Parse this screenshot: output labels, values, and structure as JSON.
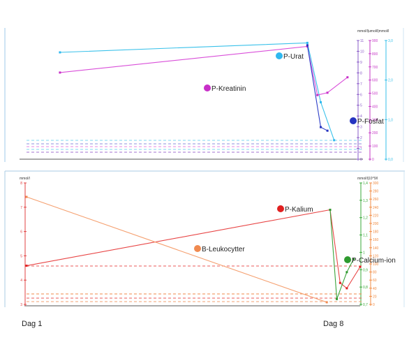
{
  "footer": {
    "day_start": "Dag 1",
    "day_end": "Dag 8"
  },
  "chart_data": [
    {
      "type": "line",
      "axis_header": "mmol/l|umol/l|mmol/l",
      "axes": [
        {
          "name": "left-mmol",
          "color": "#8a5cc8",
          "ticks": [
            "0",
            "1",
            "2",
            "3",
            "4",
            "5",
            "6",
            "7",
            "8",
            "9",
            "10",
            "11"
          ]
        },
        {
          "name": "mid-umol",
          "color": "#c63ac6",
          "ticks": [
            "0",
            "100",
            "200",
            "300",
            "400",
            "500",
            "600",
            "700",
            "800",
            "900"
          ]
        },
        {
          "name": "right-mmol",
          "color": "#36bfe8",
          "ticks": [
            "0,0",
            "1,0",
            "2,0",
            "3,0"
          ]
        }
      ],
      "series": [
        {
          "name": "P-Urat",
          "color": "#39c1ea",
          "marker_color": "#2fb8ef",
          "points": [
            [
              0.1,
              0.9
            ],
            [
              0.84,
              0.98
            ],
            [
              0.88,
              0.48
            ],
            [
              0.92,
              0.16
            ]
          ]
        },
        {
          "name": "P-Kreatinin",
          "color": "#d94ed9",
          "marker_color": "#c82fc8",
          "points": [
            [
              0.1,
              0.73
            ],
            [
              0.84,
              0.95
            ],
            [
              0.87,
              0.54
            ],
            [
              0.9,
              0.56
            ],
            [
              0.96,
              0.69
            ]
          ]
        },
        {
          "name": "P-Fosfat",
          "color": "#2e3fc8",
          "marker_color": "#2633c0",
          "points": [
            [
              0.84,
              0.96
            ],
            [
              0.88,
              0.27
            ],
            [
              0.9,
              0.24
            ]
          ]
        }
      ]
    },
    {
      "type": "line",
      "axis_header_left": "mmol/l",
      "axis_header_right": "mmol/l|10^9/l",
      "axes": [
        {
          "name": "left-mmol",
          "color": "#e04040",
          "ticks": [
            "3",
            "4",
            "5",
            "6",
            "7",
            "8"
          ]
        },
        {
          "name": "right-green",
          "color": "#38a838",
          "ticks": [
            "0,7",
            "0,8",
            "0,9",
            "1",
            "1,1",
            "1,2",
            "1,3",
            "1,4"
          ]
        },
        {
          "name": "right-orange",
          "color": "#f08a40",
          "ticks": [
            "0",
            "20",
            "40",
            "60",
            "80",
            "100",
            "120",
            "140",
            "160",
            "180",
            "200",
            "220",
            "240",
            "260",
            "280",
            "300"
          ]
        }
      ],
      "series": [
        {
          "name": "P-Kalium",
          "color": "#e84545",
          "marker_color": "#e02020",
          "points": [
            [
              0.0,
              0.36
            ],
            [
              0.91,
              0.88
            ],
            [
              0.94,
              0.2
            ],
            [
              0.96,
              0.15
            ],
            [
              1.0,
              0.35
            ]
          ]
        },
        {
          "name": "B-Leukocytter",
          "color": "#f5a070",
          "marker_color": "#f08a50",
          "points": [
            [
              0.0,
              1.0
            ],
            [
              0.9,
              0.02
            ]
          ]
        },
        {
          "name": "P-Calcium-ion",
          "color": "#3aa33a",
          "marker_color": "#2f9a2f",
          "points": [
            [
              0.91,
              0.88
            ],
            [
              0.93,
              0.05
            ],
            [
              0.96,
              0.3
            ],
            [
              0.98,
              0.42
            ]
          ]
        }
      ]
    }
  ]
}
